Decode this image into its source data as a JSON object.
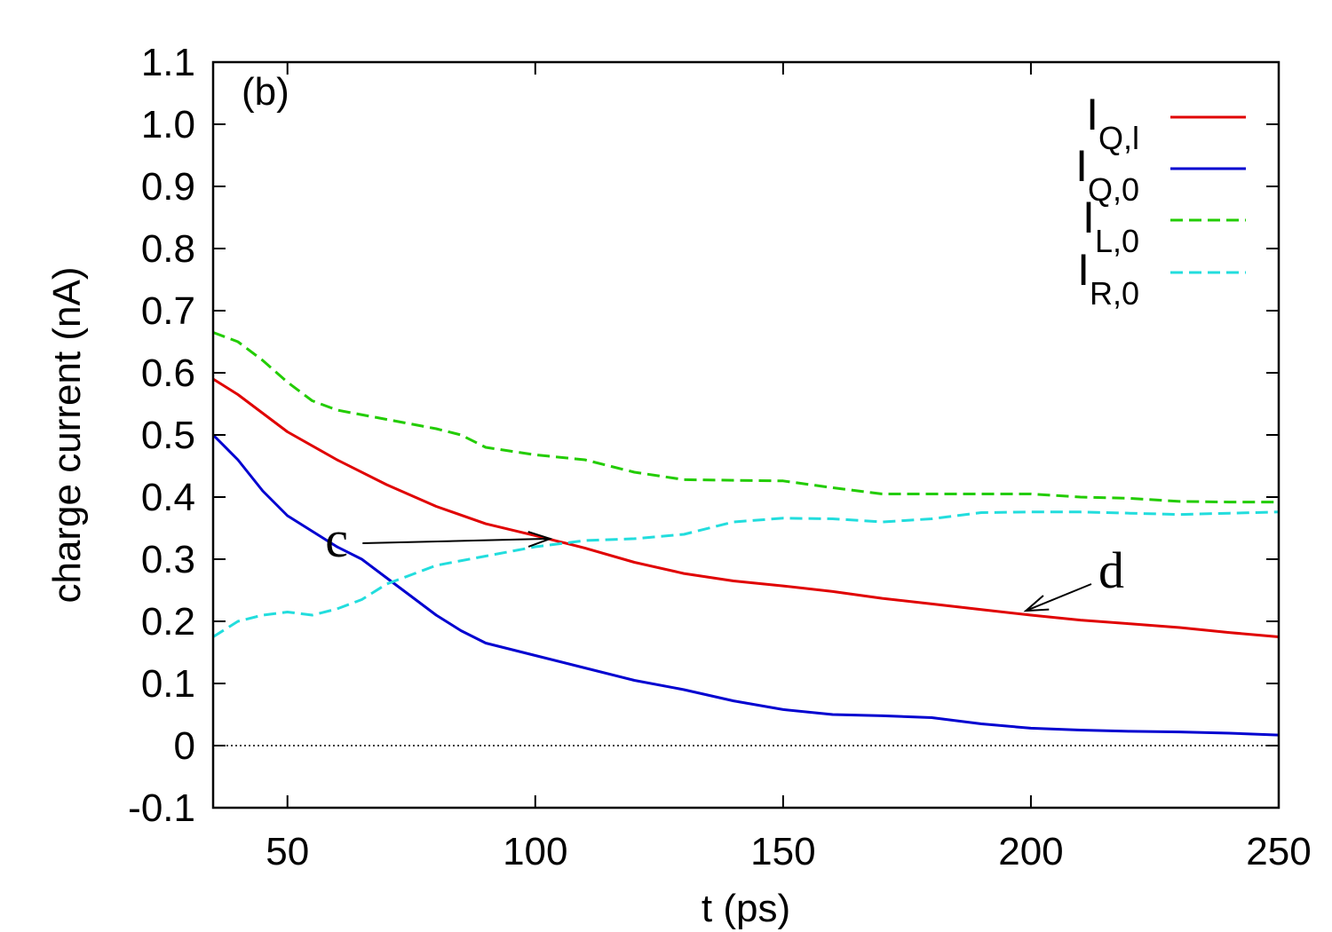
{
  "chart_data": {
    "type": "line",
    "panel_label": "(b)",
    "xlabel": "t (ps)",
    "ylabel": "charge current (nA)",
    "xlim": [
      35,
      250
    ],
    "ylim": [
      -0.1,
      1.1
    ],
    "xticks": [
      50,
      100,
      150,
      200,
      250
    ],
    "xtick_labels": [
      "50",
      "100",
      "150",
      "200",
      "250"
    ],
    "yticks": [
      -0.1,
      0,
      0.1,
      0.2,
      0.3,
      0.4,
      0.5,
      0.6,
      0.7,
      0.8,
      0.9,
      1.0,
      1.1
    ],
    "ytick_labels": [
      "-0.1",
      "0",
      "0.1",
      "0.2",
      "0.3",
      "0.4",
      "0.5",
      "0.6",
      "0.7",
      "0.8",
      "0.9",
      "1.0",
      "1.1"
    ],
    "zero_line": true,
    "grid": false,
    "legend_position": "top-right",
    "series": [
      {
        "name": "I_{Q,l}",
        "label_main": "I",
        "label_sub": "Q,l",
        "color": "#e00000",
        "dash": "solid",
        "x": [
          35,
          40,
          45,
          50,
          60,
          70,
          80,
          90,
          100,
          105,
          110,
          120,
          130,
          140,
          150,
          160,
          170,
          180,
          190,
          200,
          210,
          220,
          230,
          240,
          250
        ],
        "y": [
          0.59,
          0.565,
          0.535,
          0.505,
          0.46,
          0.42,
          0.385,
          0.357,
          0.338,
          0.328,
          0.318,
          0.295,
          0.277,
          0.265,
          0.257,
          0.248,
          0.237,
          0.228,
          0.219,
          0.21,
          0.202,
          0.196,
          0.19,
          0.182,
          0.175
        ]
      },
      {
        "name": "I_{Q,0}",
        "label_main": "I",
        "label_sub": "Q,0",
        "color": "#0000d0",
        "dash": "solid",
        "x": [
          35,
          40,
          45,
          50,
          55,
          60,
          65,
          70,
          75,
          80,
          85,
          90,
          95,
          100,
          110,
          120,
          130,
          140,
          150,
          160,
          170,
          180,
          190,
          200,
          210,
          220,
          230,
          240,
          250
        ],
        "y": [
          0.5,
          0.46,
          0.41,
          0.37,
          0.345,
          0.32,
          0.3,
          0.27,
          0.24,
          0.21,
          0.185,
          0.165,
          0.155,
          0.145,
          0.125,
          0.105,
          0.09,
          0.072,
          0.058,
          0.05,
          0.048,
          0.045,
          0.035,
          0.028,
          0.025,
          0.023,
          0.022,
          0.02,
          0.017
        ]
      },
      {
        "name": "I_{L,0}",
        "label_main": "I",
        "label_sub": "L,0",
        "color": "#22cc00",
        "dash": "dashed",
        "x": [
          35,
          40,
          45,
          50,
          55,
          60,
          70,
          80,
          85,
          90,
          100,
          110,
          120,
          130,
          140,
          150,
          160,
          170,
          180,
          190,
          200,
          210,
          220,
          230,
          240,
          250
        ],
        "y": [
          0.665,
          0.65,
          0.62,
          0.585,
          0.555,
          0.54,
          0.525,
          0.51,
          0.5,
          0.48,
          0.468,
          0.46,
          0.44,
          0.428,
          0.427,
          0.426,
          0.415,
          0.405,
          0.405,
          0.405,
          0.405,
          0.4,
          0.398,
          0.393,
          0.392,
          0.392
        ]
      },
      {
        "name": "I_{R,0}",
        "label_main": "I",
        "label_sub": "R,0",
        "color": "#22dddd",
        "dash": "dashed",
        "x": [
          35,
          40,
          45,
          50,
          55,
          60,
          65,
          70,
          75,
          80,
          90,
          100,
          110,
          120,
          130,
          140,
          150,
          160,
          170,
          180,
          190,
          200,
          210,
          220,
          230,
          240,
          250
        ],
        "y": [
          0.175,
          0.2,
          0.21,
          0.215,
          0.21,
          0.22,
          0.235,
          0.26,
          0.275,
          0.29,
          0.305,
          0.32,
          0.33,
          0.333,
          0.34,
          0.36,
          0.366,
          0.365,
          0.36,
          0.365,
          0.375,
          0.376,
          0.376,
          0.374,
          0.372,
          0.374,
          0.376
        ]
      }
    ],
    "annotations": [
      {
        "text": "c",
        "x": 63,
        "y": 0.33,
        "arrow_to_x": 103,
        "arrow_to_y": 0.333
      },
      {
        "text": "d",
        "x": 219,
        "y": 0.28,
        "arrow_to_x": 199,
        "arrow_to_y": 0.217
      }
    ]
  }
}
